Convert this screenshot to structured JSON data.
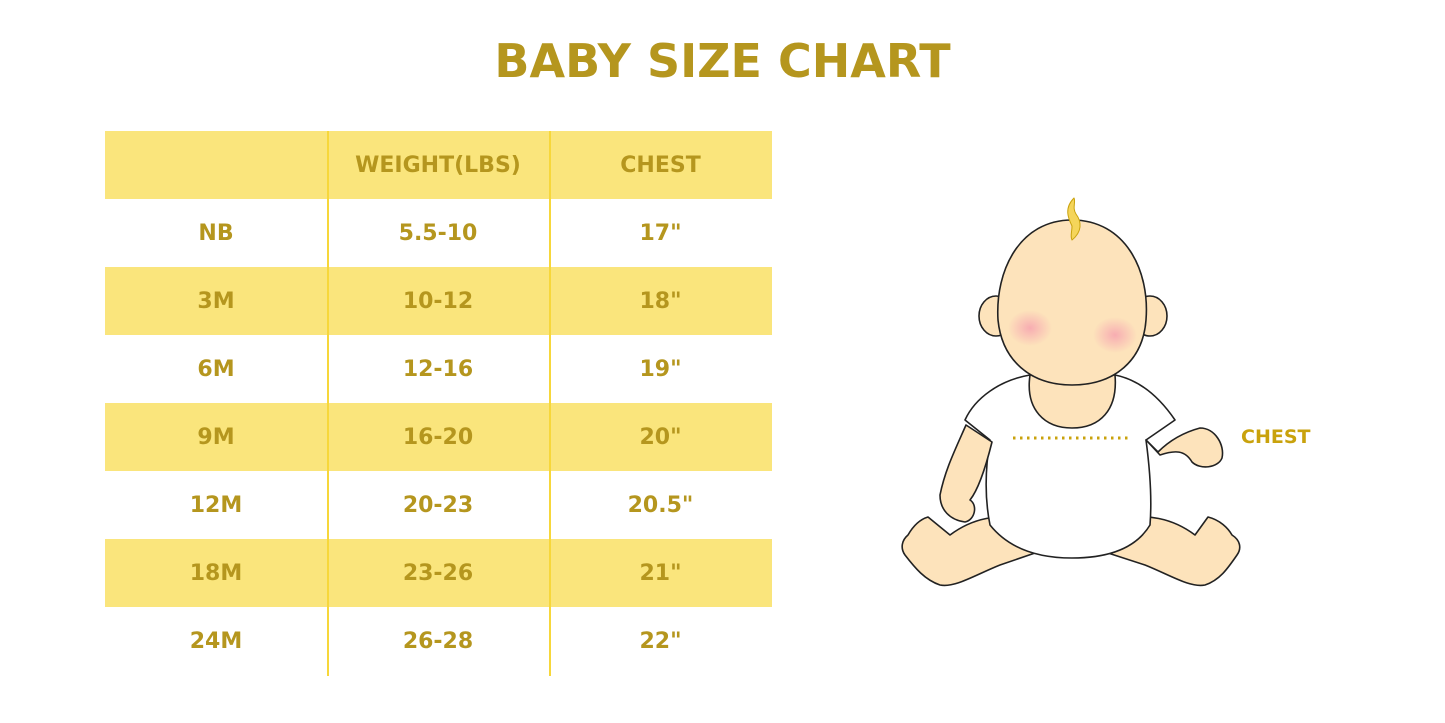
{
  "title": "BABY SIZE CHART",
  "table": {
    "headers": [
      "",
      "WEIGHT(LBS)",
      "CHEST"
    ],
    "rows": [
      [
        "NB",
        "5.5-10",
        "17\""
      ],
      [
        "3M",
        "10-12",
        "18\""
      ],
      [
        "6M",
        "12-16",
        "19\""
      ],
      [
        "9M",
        "16-20",
        "20\""
      ],
      [
        "12M",
        "20-23",
        "20.5\""
      ],
      [
        "18M",
        "23-26",
        "21\""
      ],
      [
        "24M",
        "26-28",
        "22\""
      ]
    ]
  },
  "illustration": {
    "chest_label": "CHEST"
  },
  "colors": {
    "text": "#b5961e",
    "band": "#fae57c",
    "divider": "#f7d73a",
    "skin": "#fde3bb"
  }
}
